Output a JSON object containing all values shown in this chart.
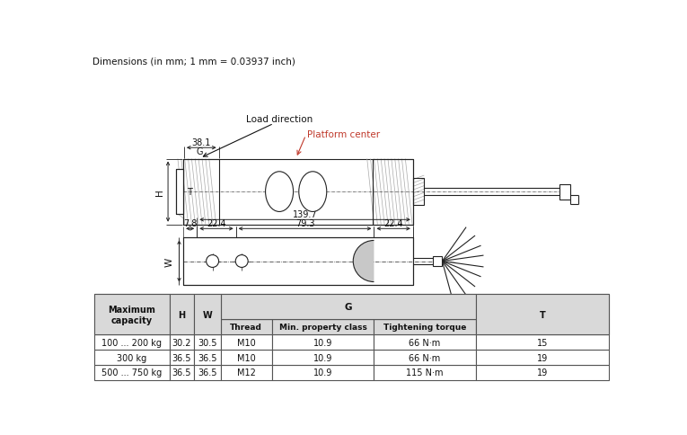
{
  "title_text": "Dimensions (in mm; 1 mm = 0.03937 inch)",
  "load_direction_label": "Load direction",
  "platform_center_label": "Platform center",
  "dim_38_1": "38.1",
  "dim_139_7": "139.7",
  "dim_7_8": "7.8",
  "dim_22_4_left": "22.4",
  "dim_79_3": "79.3",
  "dim_22_4_right": "22.4",
  "label_G": "G",
  "label_H": "H",
  "label_W": "W",
  "label_T": "T",
  "bg_color": "#ffffff",
  "table_header_bg": "#d9d9d9",
  "table_border_color": "#555555",
  "table_rows": [
    [
      "100 ... 200 kg",
      "30.2",
      "30.5",
      "M10",
      "10.9",
      "66 N·m",
      "15"
    ],
    [
      "300 kg",
      "36.5",
      "36.5",
      "M10",
      "10.9",
      "66 N·m",
      "19"
    ],
    [
      "500 ... 750 kg",
      "36.5",
      "36.5",
      "M12",
      "10.9",
      "115 N·m",
      "19"
    ]
  ],
  "line_color": "#222222",
  "gray_fill": "#c8c8c8",
  "red_color": "#c0392b"
}
